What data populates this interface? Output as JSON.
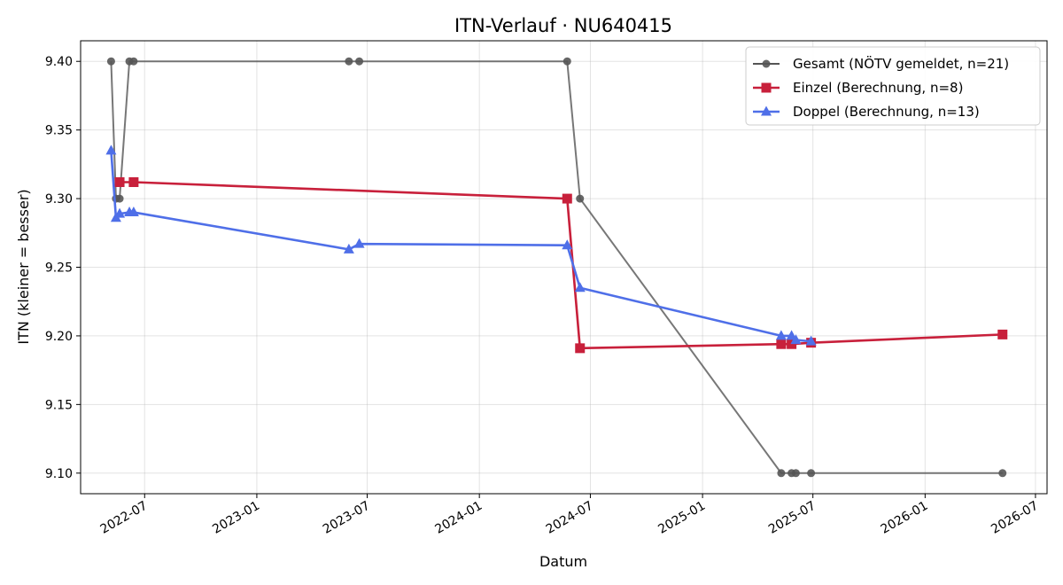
{
  "chart_data": {
    "type": "line",
    "title": "ITN-Verlauf · NU640415",
    "xlabel": "Datum",
    "ylabel": "ITN  (kleiner = besser)",
    "xlim": [
      "2022-03-18",
      "2026-07-20"
    ],
    "ylim": [
      9.085,
      9.415
    ],
    "x_ticks": [
      "2022-07",
      "2023-01",
      "2023-07",
      "2024-01",
      "2024-07",
      "2025-01",
      "2025-07",
      "2026-01",
      "2026-07"
    ],
    "y_ticks": [
      "9.10",
      "9.15",
      "9.20",
      "9.25",
      "9.30",
      "9.35",
      "9.40"
    ],
    "grid": true,
    "legend_position": "top-right",
    "series": [
      {
        "name": "Gesamt (NÖTV gemeldet, n=21)",
        "color": "#555555",
        "marker": "circle",
        "points": [
          {
            "x": "2022-05-07",
            "y": 9.4
          },
          {
            "x": "2022-05-15",
            "y": 9.3
          },
          {
            "x": "2022-05-21",
            "y": 9.3
          },
          {
            "x": "2022-06-06",
            "y": 9.4
          },
          {
            "x": "2022-06-13",
            "y": 9.4
          },
          {
            "x": "2023-06-01",
            "y": 9.4
          },
          {
            "x": "2023-06-18",
            "y": 9.4
          },
          {
            "x": "2024-05-24",
            "y": 9.4
          },
          {
            "x": "2024-06-14",
            "y": 9.3
          },
          {
            "x": "2025-05-10",
            "y": 9.1
          },
          {
            "x": "2025-05-27",
            "y": 9.1
          },
          {
            "x": "2025-06-03",
            "y": 9.1
          },
          {
            "x": "2025-06-28",
            "y": 9.1
          },
          {
            "x": "2026-05-08",
            "y": 9.1
          }
        ]
      },
      {
        "name": "Einzel (Berechnung, n=8)",
        "color": "#c8203b",
        "marker": "square",
        "points": [
          {
            "x": "2022-05-21",
            "y": 9.312
          },
          {
            "x": "2022-06-13",
            "y": 9.312
          },
          {
            "x": "2024-05-24",
            "y": 9.3
          },
          {
            "x": "2024-06-14",
            "y": 9.191
          },
          {
            "x": "2025-05-10",
            "y": 9.194
          },
          {
            "x": "2025-05-27",
            "y": 9.194
          },
          {
            "x": "2025-06-28",
            "y": 9.195
          },
          {
            "x": "2026-05-08",
            "y": 9.201
          }
        ]
      },
      {
        "name": "Doppel (Berechnung, n=13)",
        "color": "#4f6fe8",
        "marker": "triangle",
        "points": [
          {
            "x": "2022-05-07",
            "y": 9.335
          },
          {
            "x": "2022-05-15",
            "y": 9.286
          },
          {
            "x": "2022-05-21",
            "y": 9.289
          },
          {
            "x": "2022-06-06",
            "y": 9.29
          },
          {
            "x": "2022-06-13",
            "y": 9.29
          },
          {
            "x": "2023-06-01",
            "y": 9.263
          },
          {
            "x": "2023-06-18",
            "y": 9.267
          },
          {
            "x": "2024-05-24",
            "y": 9.266
          },
          {
            "x": "2024-06-14",
            "y": 9.235
          },
          {
            "x": "2025-05-10",
            "y": 9.2
          },
          {
            "x": "2025-05-27",
            "y": 9.2
          },
          {
            "x": "2025-06-03",
            "y": 9.197
          },
          {
            "x": "2025-06-28",
            "y": 9.196
          }
        ]
      }
    ]
  }
}
